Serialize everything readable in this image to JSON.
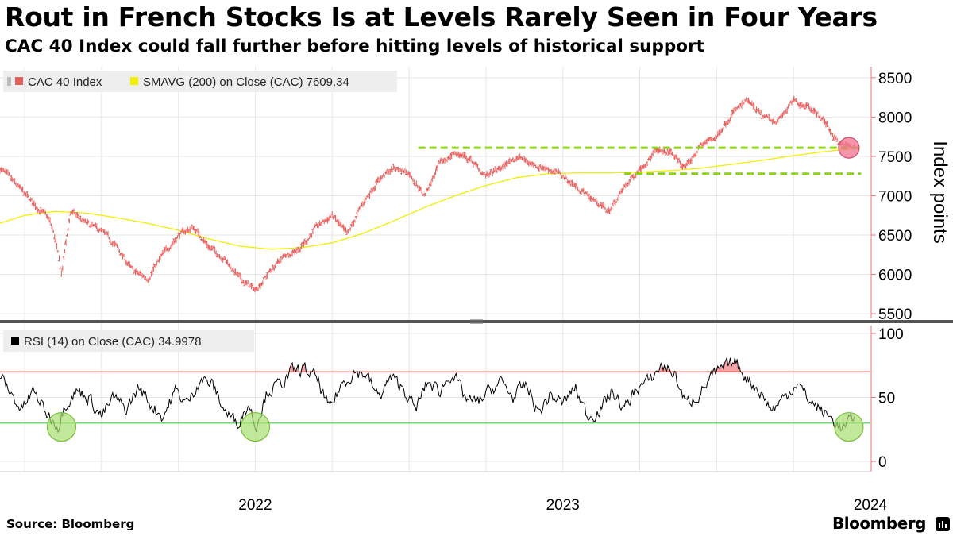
{
  "title": "Rout in French Stocks Is at Levels Rarely Seen in Four Years",
  "subtitle": "CAC 40 Index could fall further before hitting levels of historical support",
  "source": "Source: Bloomberg",
  "brand": "Bloomberg",
  "colors": {
    "cac": "#e8605e",
    "sma": "#f2ee00",
    "rsi": "#000000",
    "resistance": "#e64545",
    "support": "#5ad05a",
    "level": "#8bd116",
    "marker_red": "#f0718f",
    "marker_green": "#a8e070",
    "grid": "#e6e6e6",
    "axis": "#e87878"
  },
  "chart_data": [
    {
      "type": "line",
      "panel": "price",
      "series": [
        {
          "name": "CAC 40 Index",
          "legend_label": "CAC 40 Index",
          "style": "daily-bars",
          "x": [
            2021.67,
            2021.72,
            2021.78,
            2021.83,
            2021.85,
            2021.87,
            2021.9,
            2021.95,
            2022.0,
            2022.05,
            2022.1,
            2022.15,
            2022.2,
            2022.25,
            2022.3,
            2022.35,
            2022.4,
            2022.45,
            2022.5,
            2022.55,
            2022.6,
            2022.65,
            2022.7,
            2022.75,
            2022.8,
            2022.85,
            2022.9,
            2022.95,
            2023.0,
            2023.05,
            2023.1,
            2023.15,
            2023.2,
            2023.25,
            2023.3,
            2023.35,
            2023.4,
            2023.45,
            2023.5,
            2023.55,
            2023.6,
            2023.65,
            2023.7,
            2023.75,
            2023.8,
            2023.85,
            2023.9,
            2023.95,
            2024.0,
            2024.05,
            2024.1,
            2024.15,
            2024.2,
            2024.25,
            2024.3,
            2024.35,
            2024.4,
            2024.45
          ],
          "values": [
            7350,
            7150,
            6900,
            6700,
            6450,
            6000,
            6800,
            6650,
            6550,
            6350,
            6050,
            5950,
            6250,
            6500,
            6600,
            6350,
            6200,
            5950,
            5800,
            6050,
            6250,
            6350,
            6600,
            6750,
            6500,
            6900,
            7200,
            7350,
            7300,
            7000,
            7400,
            7550,
            7450,
            7250,
            7350,
            7500,
            7400,
            7350,
            7250,
            7100,
            6950,
            6800,
            7100,
            7350,
            7550,
            7550,
            7350,
            7650,
            7750,
            8050,
            8200,
            8000,
            7950,
            8200,
            8150,
            7950,
            7650,
            7609.34
          ]
        },
        {
          "name": "SMAVG (200)  on Close (CAC)",
          "legend_label": "SMAVG (200)  on Close (CAC) 7609.34",
          "style": "line",
          "x": [
            2021.67,
            2021.75,
            2021.85,
            2021.95,
            2022.05,
            2022.15,
            2022.25,
            2022.35,
            2022.45,
            2022.55,
            2022.65,
            2022.75,
            2022.85,
            2022.95,
            2023.05,
            2023.15,
            2023.25,
            2023.35,
            2023.45,
            2023.55,
            2023.65,
            2023.75,
            2023.85,
            2023.95,
            2024.05,
            2024.15,
            2024.25,
            2024.35,
            2024.45
          ],
          "values": [
            6650,
            6750,
            6800,
            6780,
            6720,
            6650,
            6560,
            6450,
            6360,
            6320,
            6340,
            6400,
            6520,
            6680,
            6850,
            7000,
            7130,
            7230,
            7280,
            7290,
            7290,
            7300,
            7320,
            7350,
            7400,
            7450,
            7510,
            7560,
            7600
          ]
        }
      ],
      "levels": [
        {
          "name": "resistance",
          "value": 7609.34,
          "x_range": [
            2023.03,
            2024.47
          ]
        },
        {
          "name": "support",
          "value": 7280,
          "x_range": [
            2023.7,
            2024.47
          ]
        }
      ],
      "markers": [
        {
          "x": 2024.43,
          "value": 7609.34,
          "color": "red"
        }
      ],
      "ylabel": "Index points",
      "ylim": [
        5400,
        8650
      ],
      "yticks": [
        5500,
        6000,
        6500,
        7000,
        7500,
        8000,
        8500
      ],
      "ytick_labels": [
        "5500",
        "6000",
        "6500",
        "7000",
        "7500",
        "8000",
        "8500"
      ],
      "legend_position": "top-left"
    },
    {
      "type": "line",
      "panel": "rsi",
      "series": [
        {
          "name": "RSI (14)  on Close (CAC)",
          "legend_label": "RSI (14)  on Close (CAC) 34.9978",
          "x": [
            2021.67,
            2021.7,
            2021.74,
            2021.78,
            2021.82,
            2021.86,
            2021.88,
            2021.92,
            2021.96,
            2022.0,
            2022.04,
            2022.08,
            2022.12,
            2022.16,
            2022.2,
            2022.24,
            2022.28,
            2022.32,
            2022.36,
            2022.4,
            2022.44,
            2022.48,
            2022.5,
            2022.54,
            2022.58,
            2022.62,
            2022.66,
            2022.7,
            2022.74,
            2022.78,
            2022.82,
            2022.86,
            2022.9,
            2022.94,
            2022.98,
            2023.02,
            2023.06,
            2023.1,
            2023.14,
            2023.18,
            2023.22,
            2023.26,
            2023.3,
            2023.34,
            2023.38,
            2023.42,
            2023.46,
            2023.5,
            2023.54,
            2023.58,
            2023.62,
            2023.66,
            2023.7,
            2023.74,
            2023.78,
            2023.82,
            2023.86,
            2023.9,
            2023.94,
            2023.98,
            2024.02,
            2024.06,
            2024.1,
            2024.14,
            2024.18,
            2024.22,
            2024.26,
            2024.3,
            2024.34,
            2024.38,
            2024.41,
            2024.43,
            2024.45
          ],
          "values": [
            68,
            55,
            40,
            55,
            38,
            28,
            45,
            55,
            50,
            35,
            50,
            40,
            58,
            45,
            35,
            55,
            45,
            65,
            60,
            40,
            30,
            45,
            28,
            55,
            60,
            70,
            72,
            65,
            40,
            60,
            70,
            68,
            50,
            65,
            58,
            40,
            62,
            55,
            70,
            50,
            45,
            55,
            62,
            50,
            60,
            38,
            52,
            45,
            58,
            35,
            40,
            55,
            40,
            58,
            62,
            75,
            70,
            45,
            52,
            65,
            72,
            78,
            65,
            55,
            40,
            50,
            62,
            48,
            40,
            32,
            25,
            30,
            34.9978
          ]
        }
      ],
      "levels": [
        {
          "name": "overbought",
          "value": 70
        },
        {
          "name": "oversold",
          "value": 30
        }
      ],
      "markers": [
        {
          "x": 2021.87,
          "value": 27,
          "color": "green"
        },
        {
          "x": 2022.5,
          "value": 27,
          "color": "green"
        },
        {
          "x": 2024.43,
          "value": 27,
          "color": "green"
        }
      ],
      "ylim": [
        -8,
        108
      ],
      "yticks": [
        0,
        50,
        100
      ],
      "ytick_labels": [
        "0",
        "50",
        "100"
      ]
    }
  ],
  "x_axis": {
    "range": [
      2021.67,
      2024.5
    ],
    "year_ticks": [
      2022,
      2023,
      2024
    ],
    "tick_labels": [
      "2022",
      "2023",
      "2024"
    ],
    "quarter_ticks": [
      2021.75,
      2022.0,
      2022.25,
      2022.5,
      2022.75,
      2023.0,
      2023.25,
      2023.5,
      2023.75,
      2024.0,
      2024.25
    ]
  }
}
